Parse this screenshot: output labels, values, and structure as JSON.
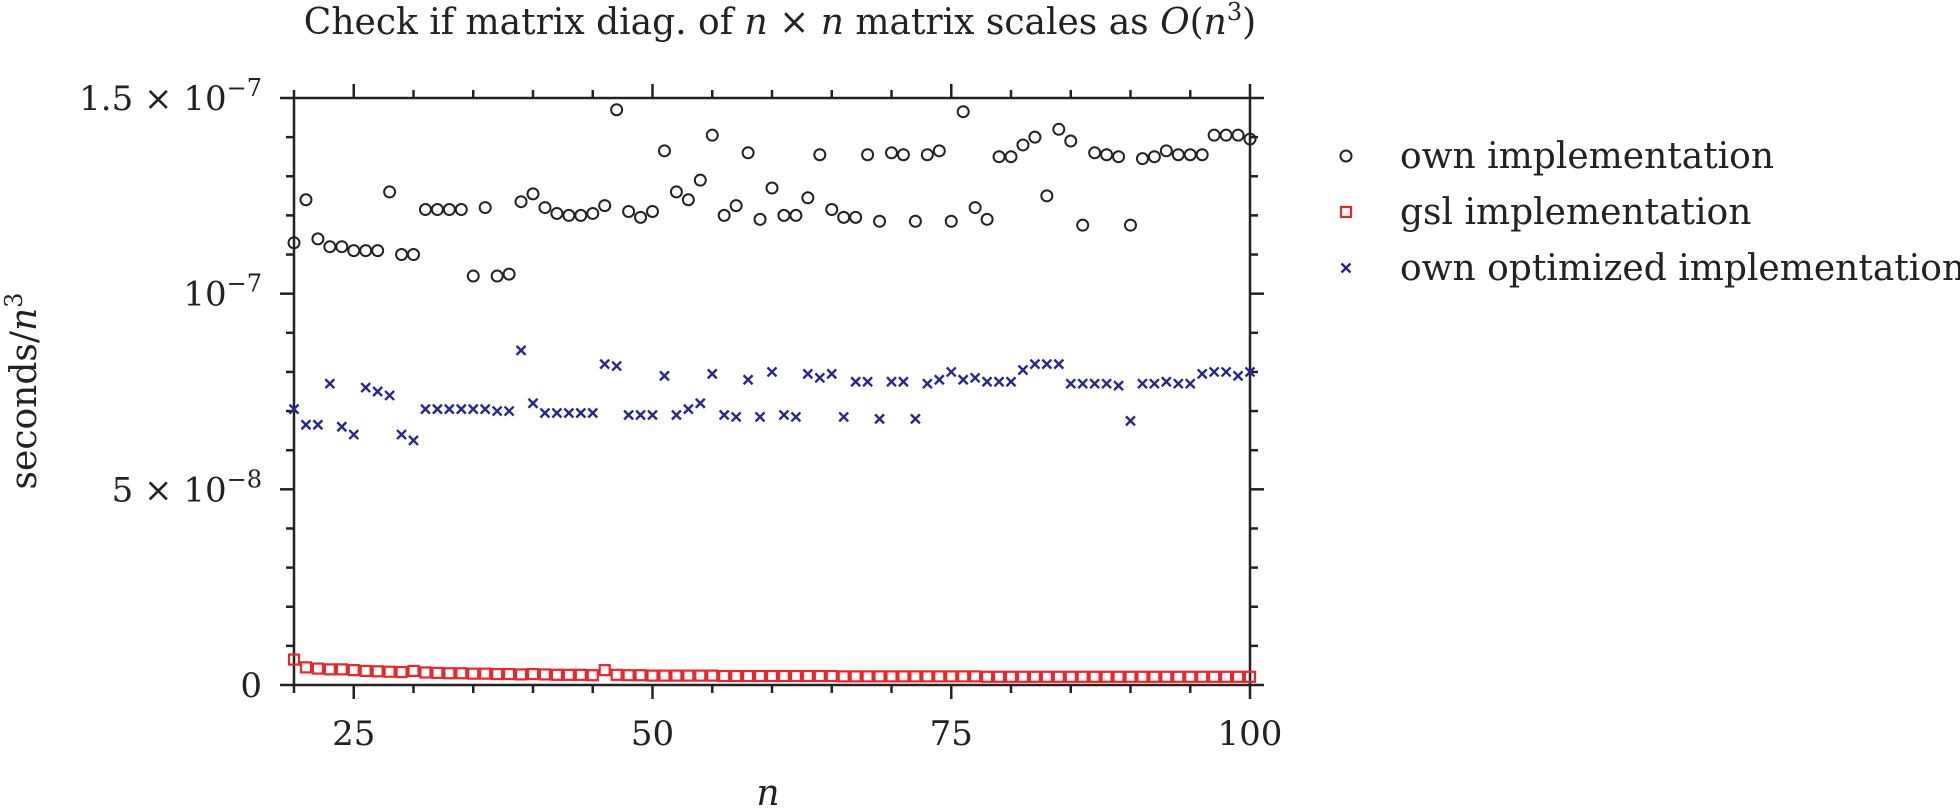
{
  "chart_data": {
    "type": "scatter",
    "title_parts": [
      "Check if matrix diag. of ",
      "n",
      " × ",
      "n",
      " matrix scales as ",
      "O",
      "(",
      "n",
      "3",
      ")"
    ],
    "xlabel": "n",
    "ylabel_parts": [
      "seconds/",
      "n",
      "3"
    ],
    "xlim": [
      20,
      100
    ],
    "ylim": [
      0,
      1.5e-07
    ],
    "x_ticks": [
      25,
      50,
      75,
      100
    ],
    "x_tick_labels": [
      "25",
      "50",
      "75",
      "100"
    ],
    "y_ticks": [
      0,
      5e-08,
      1e-07,
      1.5e-07
    ],
    "y_tick_labels": [
      {
        "mantissa": "0",
        "exp": ""
      },
      {
        "mantissa": "5 × 10",
        "exp": "−8"
      },
      {
        "mantissa": "10",
        "exp": "−7"
      },
      {
        "mantissa": "1.5 × 10",
        "exp": "−7"
      }
    ],
    "grid": false,
    "legend_position": "right",
    "series": [
      {
        "name": "own implementation",
        "marker": "circle",
        "color": "#222222",
        "x": [
          20,
          21,
          22,
          23,
          24,
          25,
          26,
          27,
          28,
          29,
          30,
          31,
          32,
          33,
          34,
          35,
          36,
          37,
          38,
          39,
          40,
          41,
          42,
          43,
          44,
          45,
          46,
          47,
          48,
          49,
          50,
          51,
          52,
          53,
          54,
          55,
          56,
          57,
          58,
          59,
          60,
          61,
          62,
          63,
          64,
          65,
          66,
          67,
          68,
          69,
          70,
          71,
          72,
          73,
          74,
          75,
          76,
          77,
          78,
          79,
          80,
          81,
          82,
          83,
          84,
          85,
          86,
          87,
          88,
          89,
          90,
          91,
          92,
          93,
          94,
          95,
          96,
          97,
          98,
          99,
          100
        ],
        "y": [
          1.13e-07,
          1.24e-07,
          1.14e-07,
          1.12e-07,
          1.12e-07,
          1.11e-07,
          1.11e-07,
          1.11e-07,
          1.26e-07,
          1.1e-07,
          1.1e-07,
          1.215e-07,
          1.215e-07,
          1.215e-07,
          1.215e-07,
          1.045e-07,
          1.22e-07,
          1.045e-07,
          1.05e-07,
          1.235e-07,
          1.255e-07,
          1.22e-07,
          1.205e-07,
          1.2e-07,
          1.2e-07,
          1.205e-07,
          1.225e-07,
          1.47e-07,
          1.21e-07,
          1.195e-07,
          1.21e-07,
          1.365e-07,
          1.26e-07,
          1.24e-07,
          1.29e-07,
          1.405e-07,
          1.2e-07,
          1.225e-07,
          1.36e-07,
          1.19e-07,
          1.27e-07,
          1.2e-07,
          1.2e-07,
          1.245e-07,
          1.355e-07,
          1.215e-07,
          1.195e-07,
          1.195e-07,
          1.355e-07,
          1.185e-07,
          1.36e-07,
          1.355e-07,
          1.185e-07,
          1.355e-07,
          1.365e-07,
          1.185e-07,
          1.465e-07,
          1.22e-07,
          1.19e-07,
          1.35e-07,
          1.35e-07,
          1.38e-07,
          1.4e-07,
          1.25e-07,
          1.42e-07,
          1.39e-07,
          1.175e-07,
          1.36e-07,
          1.355e-07,
          1.35e-07,
          1.175e-07,
          1.345e-07,
          1.35e-07,
          1.365e-07,
          1.355e-07,
          1.355e-07,
          1.355e-07,
          1.405e-07,
          1.405e-07,
          1.405e-07,
          1.395e-07
        ]
      },
      {
        "name": "gsl implementation",
        "marker": "square",
        "color": "#e8262b",
        "x": [
          20,
          21,
          22,
          23,
          24,
          25,
          26,
          27,
          28,
          29,
          30,
          31,
          32,
          33,
          34,
          35,
          36,
          37,
          38,
          39,
          40,
          41,
          42,
          43,
          44,
          45,
          46,
          47,
          48,
          49,
          50,
          51,
          52,
          53,
          54,
          55,
          56,
          57,
          58,
          59,
          60,
          61,
          62,
          63,
          64,
          65,
          66,
          67,
          68,
          69,
          70,
          71,
          72,
          73,
          74,
          75,
          76,
          77,
          78,
          79,
          80,
          81,
          82,
          83,
          84,
          85,
          86,
          87,
          88,
          89,
          90,
          91,
          92,
          93,
          94,
          95,
          96,
          97,
          98,
          99,
          100
        ],
        "y": [
          6.5e-09,
          4.5e-09,
          4.2e-09,
          4e-09,
          4e-09,
          3.8e-09,
          3.6e-09,
          3.5e-09,
          3.4e-09,
          3.3e-09,
          3.6e-09,
          3.2e-09,
          3.1e-09,
          3e-09,
          3e-09,
          2.9e-09,
          2.9e-09,
          2.8e-09,
          2.8e-09,
          2.7e-09,
          2.8e-09,
          2.7e-09,
          2.6e-09,
          2.6e-09,
          2.6e-09,
          2.5e-09,
          3.8e-09,
          2.6e-09,
          2.5e-09,
          2.5e-09,
          2.4e-09,
          2.4e-09,
          2.4e-09,
          2.4e-09,
          2.4e-09,
          2.4e-09,
          2.3e-09,
          2.3e-09,
          2.3e-09,
          2.3e-09,
          2.3e-09,
          2.3e-09,
          2.3e-09,
          2.3e-09,
          2.3e-09,
          2.3e-09,
          2.2e-09,
          2.2e-09,
          2.2e-09,
          2.2e-09,
          2.2e-09,
          2.2e-09,
          2.2e-09,
          2.2e-09,
          2.2e-09,
          2.2e-09,
          2.2e-09,
          2.2e-09,
          2.1e-09,
          2.1e-09,
          2.1e-09,
          2.1e-09,
          2.1e-09,
          2.1e-09,
          2.1e-09,
          2.1e-09,
          2.1e-09,
          2.1e-09,
          2.1e-09,
          2.1e-09,
          2.1e-09,
          2.1e-09,
          2.1e-09,
          2.1e-09,
          2.1e-09,
          2.1e-09,
          2.1e-09,
          2.1e-09,
          2.1e-09,
          2.1e-09,
          2.1e-09
        ]
      },
      {
        "name": "own optimized implementation",
        "marker": "x",
        "color": "#27288e",
        "x": [
          20,
          21,
          22,
          23,
          24,
          25,
          26,
          27,
          28,
          29,
          30,
          31,
          32,
          33,
          34,
          35,
          36,
          37,
          38,
          39,
          40,
          41,
          42,
          43,
          44,
          45,
          46,
          47,
          48,
          49,
          50,
          51,
          52,
          53,
          54,
          55,
          56,
          57,
          58,
          59,
          60,
          61,
          62,
          63,
          64,
          65,
          66,
          67,
          68,
          69,
          70,
          71,
          72,
          73,
          74,
          75,
          76,
          77,
          78,
          79,
          80,
          81,
          82,
          83,
          84,
          85,
          86,
          87,
          88,
          89,
          90,
          91,
          92,
          93,
          94,
          95,
          96,
          97,
          98,
          99,
          100
        ],
        "y": [
          7.05e-08,
          6.65e-08,
          6.65e-08,
          7.7e-08,
          6.6e-08,
          6.4e-08,
          7.6e-08,
          7.5e-08,
          7.4e-08,
          6.4e-08,
          6.25e-08,
          7.05e-08,
          7.05e-08,
          7.05e-08,
          7.05e-08,
          7.05e-08,
          7.05e-08,
          7e-08,
          7e-08,
          8.55e-08,
          7.2e-08,
          6.95e-08,
          6.95e-08,
          6.95e-08,
          6.95e-08,
          6.95e-08,
          8.2e-08,
          8.15e-08,
          6.9e-08,
          6.9e-08,
          6.9e-08,
          7.9e-08,
          6.9e-08,
          7.05e-08,
          7.2e-08,
          7.95e-08,
          6.9e-08,
          6.85e-08,
          7.8e-08,
          6.85e-08,
          8e-08,
          6.9e-08,
          6.85e-08,
          7.95e-08,
          7.85e-08,
          7.95e-08,
          6.85e-08,
          7.75e-08,
          7.75e-08,
          6.8e-08,
          7.75e-08,
          7.75e-08,
          6.8e-08,
          7.7e-08,
          7.8e-08,
          8e-08,
          7.8e-08,
          7.85e-08,
          7.75e-08,
          7.75e-08,
          7.75e-08,
          8.05e-08,
          8.2e-08,
          8.2e-08,
          8.2e-08,
          7.7e-08,
          7.7e-08,
          7.7e-08,
          7.7e-08,
          7.65e-08,
          6.75e-08,
          7.7e-08,
          7.7e-08,
          7.75e-08,
          7.7e-08,
          7.7e-08,
          7.95e-08,
          8e-08,
          8e-08,
          7.9e-08,
          8e-08
        ]
      }
    ]
  }
}
